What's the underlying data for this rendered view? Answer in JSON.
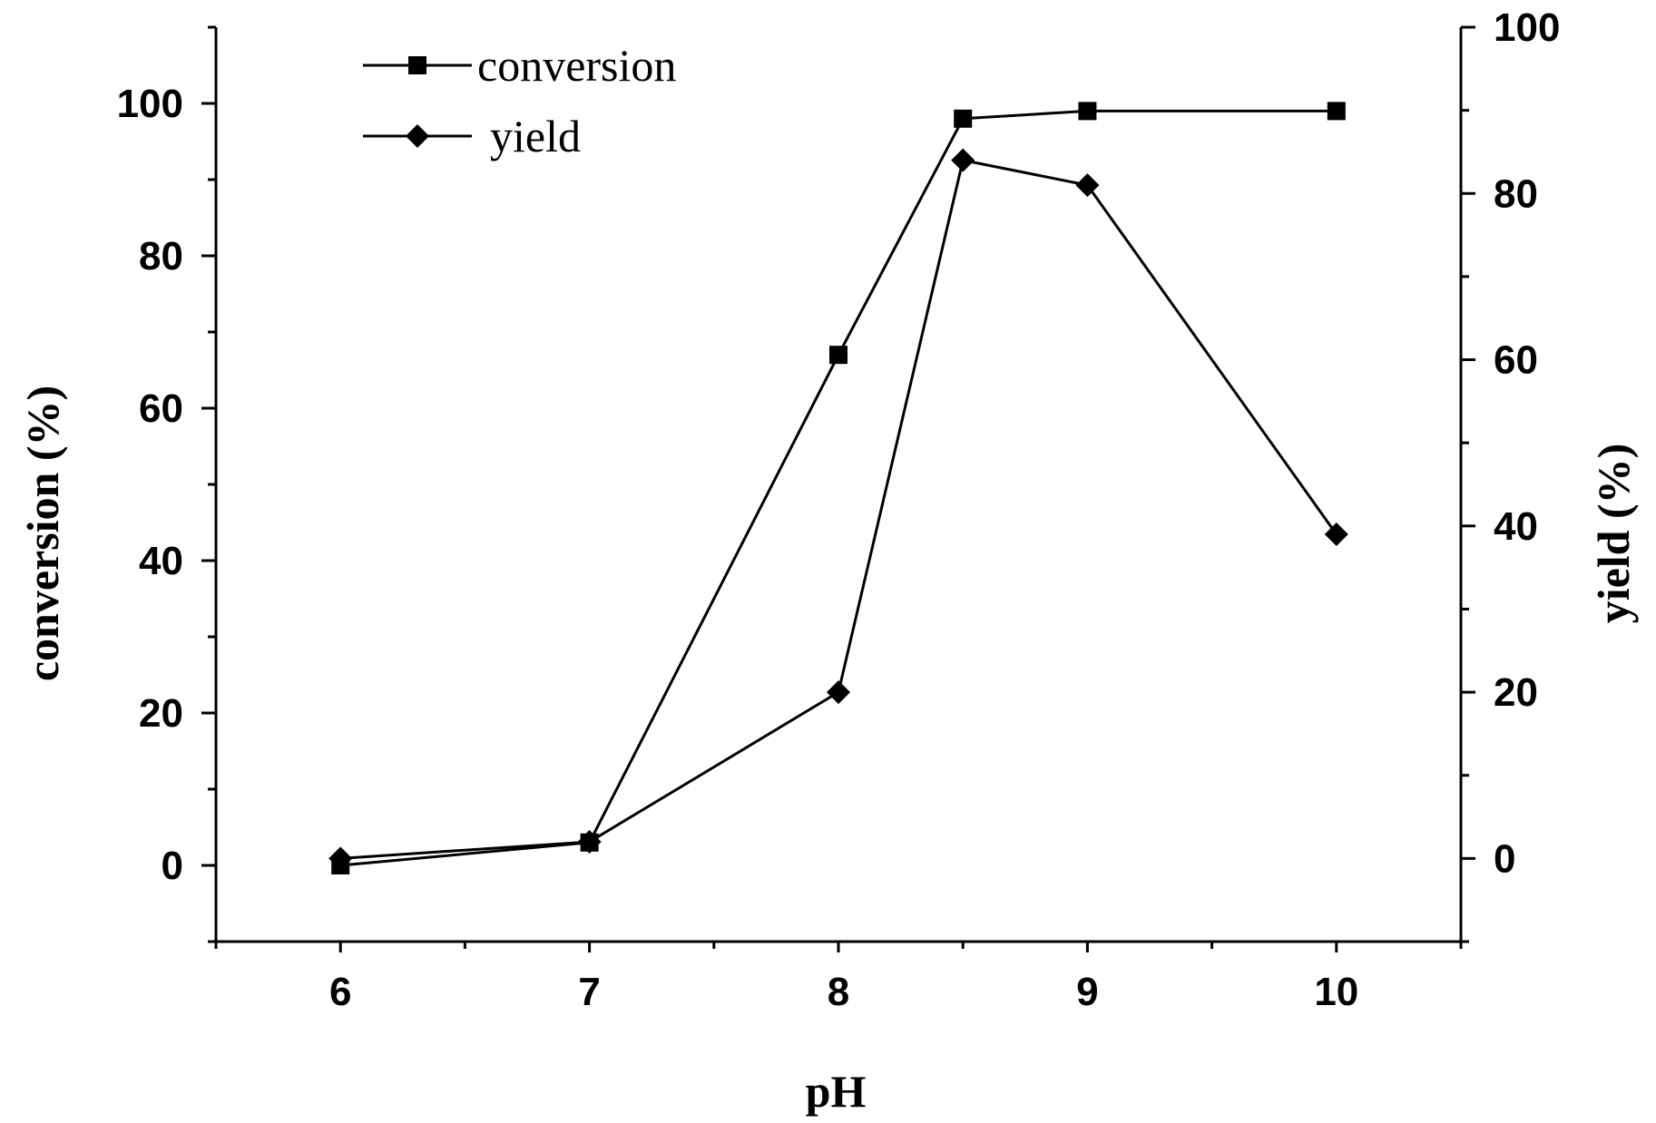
{
  "chart_data": {
    "type": "line",
    "xlabel": "pH",
    "ylabel_left": "conversion (%)",
    "ylabel_right": "yield (%)",
    "x": [
      6,
      7,
      8,
      8.5,
      9,
      10
    ],
    "x_ticks": [
      6,
      7,
      8,
      9,
      10
    ],
    "xlim": [
      5.5,
      10.5
    ],
    "ylim_left": [
      -10,
      110
    ],
    "ylim_right": [
      -10,
      100
    ],
    "left_ticks": [
      0,
      20,
      40,
      60,
      80,
      100
    ],
    "right_ticks": [
      0,
      20,
      40,
      60,
      80,
      100
    ],
    "grid": false,
    "legend_position": "top-left",
    "series": [
      {
        "name": "conversion",
        "axis": "left",
        "marker": "square",
        "values": [
          0,
          3,
          67,
          98,
          99,
          99
        ]
      },
      {
        "name": "yield",
        "axis": "right",
        "marker": "diamond",
        "values": [
          0,
          2,
          20,
          84,
          81,
          39
        ]
      }
    ],
    "colors": {
      "line": "#000000",
      "background": "#ffffff"
    }
  }
}
